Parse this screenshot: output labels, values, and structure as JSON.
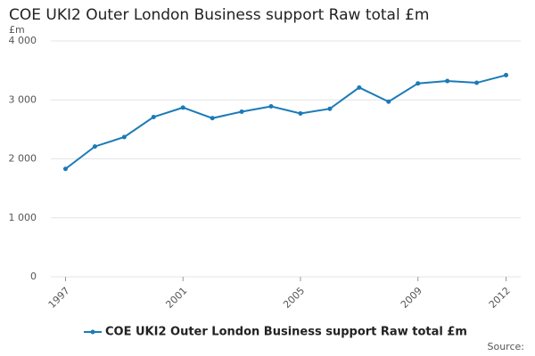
{
  "chart_data": {
    "type": "line",
    "title": "COE UKI2 Outer London Business support Raw total £m",
    "y_label": "£m",
    "source": "Source:",
    "x": [
      1997,
      1998,
      1999,
      2000,
      2001,
      2002,
      2003,
      2004,
      2005,
      2006,
      2007,
      2008,
      2009,
      2010,
      2011,
      2012
    ],
    "series": [
      {
        "name": "COE UKI2 Outer London Business support Raw total £m",
        "color": "#1a7ab8",
        "values": [
          1830,
          2210,
          2370,
          2710,
          2870,
          2690,
          2800,
          2890,
          2770,
          2850,
          3210,
          2970,
          3280,
          3320,
          3290,
          3420
        ]
      }
    ],
    "xlim": [
      1996.5,
      2012.5
    ],
    "xticks": [
      1997,
      2001,
      2005,
      2009,
      2012
    ],
    "ylim": [
      0,
      4000
    ],
    "yticks": [
      0,
      {
        "value": 1000,
        "label": "1 000"
      },
      {
        "value": 2000,
        "label": "2 000"
      },
      {
        "value": 3000,
        "label": "3 000"
      },
      {
        "value": 4000,
        "label": "4 000"
      }
    ],
    "grid": true
  }
}
